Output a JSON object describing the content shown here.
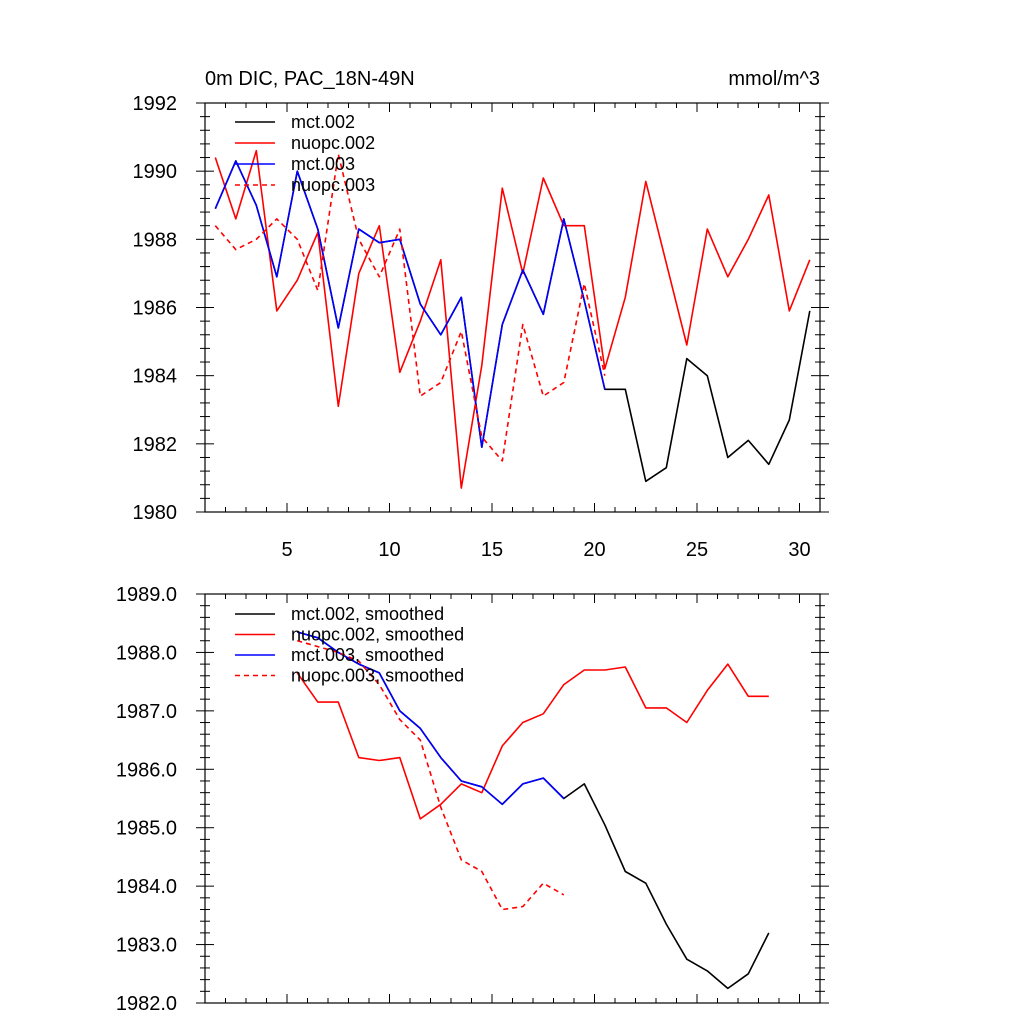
{
  "chart_data": [
    {
      "type": "line",
      "title": "0m DIC, PAC_18N-49N",
      "units": "mmol/m^3",
      "xlim": [
        1,
        31
      ],
      "ylim": [
        1980,
        1992
      ],
      "x_ticks": [
        5,
        10,
        15,
        20,
        25,
        30
      ],
      "y_ticks": [
        1980,
        1982,
        1984,
        1986,
        1988,
        1990,
        1992
      ],
      "y_decimals": 0,
      "show_x_tick_labels": true,
      "legend_position": "top-left",
      "series": [
        {
          "name": "mct.002",
          "color": "#000000",
          "dash": false,
          "x_start": 1.5,
          "values": [
            1988.9,
            1990.3,
            1989.0,
            1986.9,
            1990.0,
            1988.3,
            1985.4,
            1988.3,
            1987.9,
            1988.0,
            1986.1,
            1985.2,
            1986.3,
            1981.9,
            1985.5,
            1987.1,
            1985.8,
            1988.6,
            1986.2,
            1983.6,
            1983.6,
            1980.9,
            1981.3,
            1984.5,
            1984.0,
            1981.6,
            1982.1,
            1981.4,
            1982.7,
            1985.9
          ]
        },
        {
          "name": "nuopc.002",
          "color": "#ff0000",
          "dash": false,
          "x_start": 1.5,
          "values": [
            1990.4,
            1988.6,
            1990.6,
            1985.9,
            1986.8,
            1988.2,
            1983.1,
            1987.0,
            1988.4,
            1984.1,
            1985.6,
            1987.4,
            1980.7,
            1984.3,
            1989.5,
            1987.0,
            1989.8,
            1988.4,
            1988.4,
            1984.2,
            1986.3,
            1989.7,
            1987.3,
            1984.9,
            1988.3,
            1986.9,
            1988.0,
            1989.3,
            1985.9,
            1987.4
          ]
        },
        {
          "name": "mct.003",
          "color": "#0000ff",
          "dash": false,
          "x_start": 1.5,
          "values": [
            1988.9,
            1990.3,
            1989.0,
            1986.9,
            1990.0,
            1988.3,
            1985.4,
            1988.3,
            1987.9,
            1988.0,
            1986.1,
            1985.2,
            1986.3,
            1981.9,
            1985.5,
            1987.1,
            1985.8,
            1988.6,
            1986.2,
            1983.6
          ]
        },
        {
          "name": "nuopc.003",
          "color": "#ff0000",
          "dash": true,
          "x_start": 1.5,
          "values": [
            1988.4,
            1987.7,
            1988.0,
            1988.6,
            1988.0,
            1986.5,
            1990.5,
            1988.0,
            1986.9,
            1988.3,
            1983.4,
            1983.8,
            1985.3,
            1982.2,
            1981.5,
            1985.5,
            1983.4,
            1983.8,
            1986.7,
            1984.0
          ]
        }
      ]
    },
    {
      "type": "line",
      "title": "",
      "units": "",
      "xlim": [
        1,
        31
      ],
      "ylim": [
        1982.0,
        1989.0
      ],
      "x_ticks": [
        5,
        10,
        15,
        20,
        25,
        30
      ],
      "y_ticks": [
        1982.0,
        1983.0,
        1984.0,
        1985.0,
        1986.0,
        1987.0,
        1988.0,
        1989.0
      ],
      "y_decimals": 1,
      "show_x_tick_labels": false,
      "legend_position": "top-left",
      "series": [
        {
          "name": "mct.002, smoothed",
          "color": "#000000",
          "dash": false,
          "x_start": 5.5,
          "values": [
            1988.35,
            1988.25,
            1988.0,
            1987.8,
            1987.65,
            1987.0,
            1986.7,
            1986.2,
            1985.8,
            1985.7,
            1985.4,
            1985.75,
            1985.85,
            1985.5,
            1985.75,
            1985.05,
            1984.25,
            1984.05,
            1983.35,
            1982.75,
            1982.55,
            1982.25,
            1982.5,
            1983.2
          ]
        },
        {
          "name": "nuopc.002, smoothed",
          "color": "#ff0000",
          "dash": false,
          "x_start": 5.5,
          "values": [
            1987.65,
            1987.15,
            1987.15,
            1986.2,
            1986.15,
            1986.2,
            1985.15,
            1985.4,
            1985.75,
            1985.6,
            1986.4,
            1986.8,
            1986.95,
            1987.45,
            1987.7,
            1987.7,
            1987.75,
            1987.05,
            1987.05,
            1986.8,
            1987.35,
            1987.8,
            1987.25,
            1987.25
          ]
        },
        {
          "name": "mct.003, smoothed",
          "color": "#0000ff",
          "dash": false,
          "x_start": 5.5,
          "values": [
            1988.35,
            1988.25,
            1988.0,
            1987.8,
            1987.65,
            1987.0,
            1986.7,
            1986.2,
            1985.8,
            1985.7,
            1985.4,
            1985.75,
            1985.85,
            1985.5
          ]
        },
        {
          "name": "nuopc.003, smoothed",
          "color": "#ff0000",
          "dash": true,
          "x_start": 5.5,
          "values": [
            1988.2,
            1988.1,
            1988.0,
            1987.85,
            1987.45,
            1986.85,
            1986.5,
            1985.35,
            1984.45,
            1984.25,
            1983.6,
            1983.65,
            1984.05,
            1983.85
          ]
        }
      ]
    }
  ]
}
